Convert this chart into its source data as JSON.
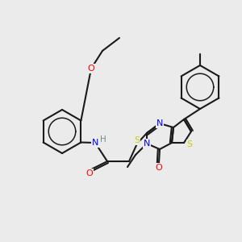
{
  "background_color": "#ebebeb",
  "bond_color": "#1a1a1a",
  "atom_colors": {
    "N": "#0000ff",
    "O": "#ff0000",
    "S": "#cccc00",
    "H": "#6e8b8b",
    "C": "#1a1a1a"
  },
  "figsize": [
    3.0,
    3.0
  ],
  "dpi": 100
}
